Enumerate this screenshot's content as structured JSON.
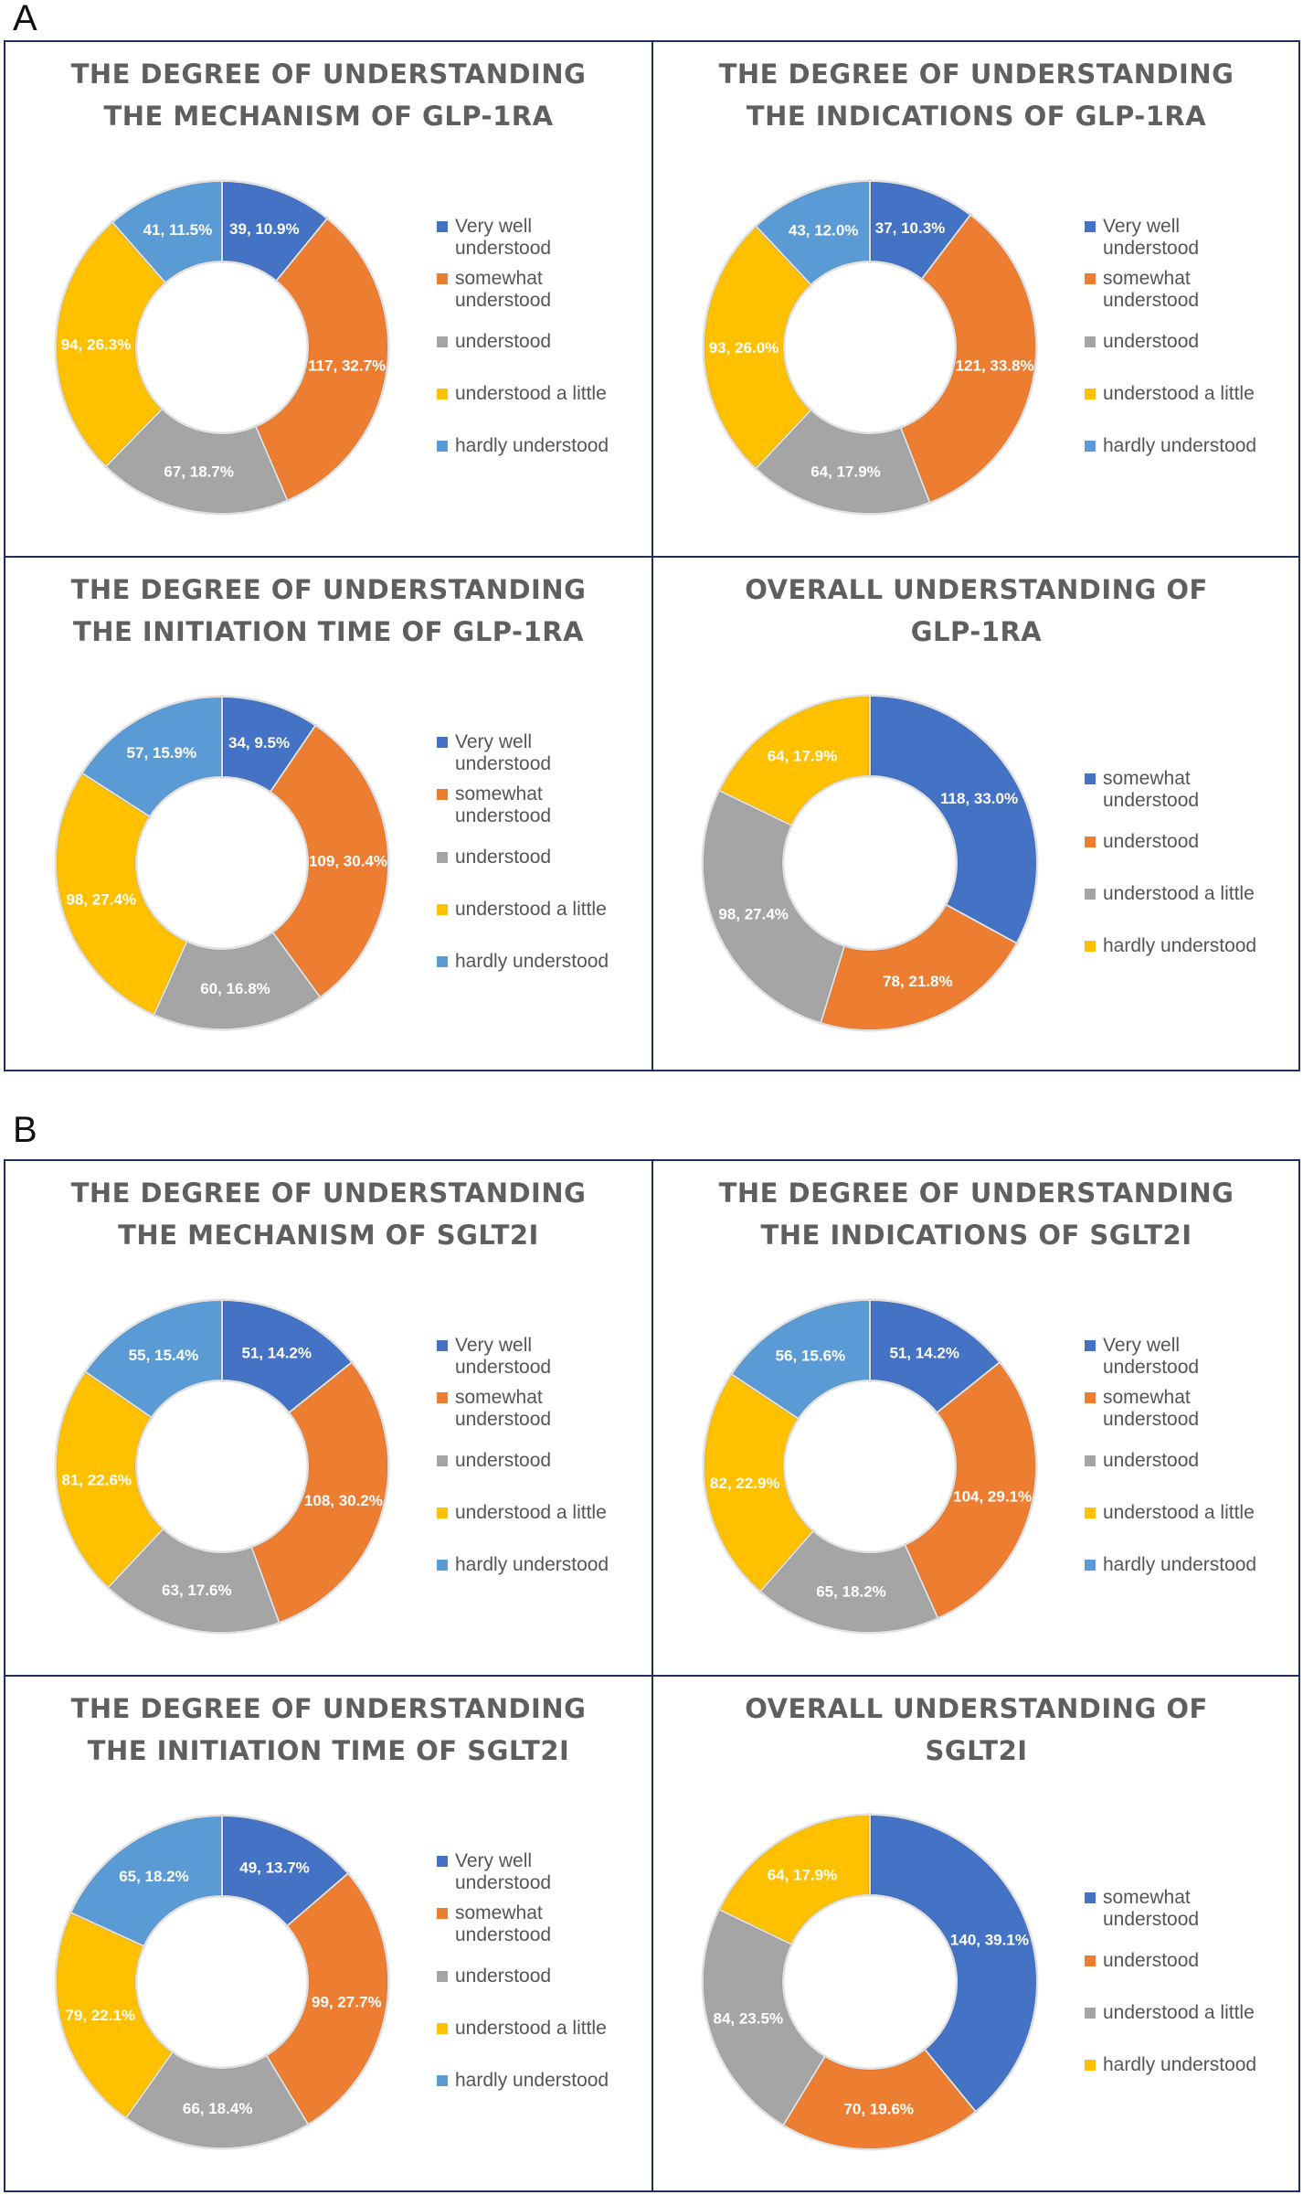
{
  "sections": [
    {
      "label": "A",
      "panels": [
        {
          "title_line1": "THE DEGREE OF UNDERSTANDING",
          "title_line2": "THE MECHANISM OF GLP-1RA",
          "chart_data": {
            "type": "pie",
            "categories": [
              "Very well understood",
              "somewhat understood",
              "understood",
              "understood a little",
              "hardly understood"
            ],
            "values": [
              39,
              117,
              67,
              94,
              41
            ],
            "labels": [
              "39, 10.9%",
              "117, 32.7%",
              "67, 18.7%",
              "94, 26.3%",
              "41, 11.5%"
            ],
            "colors": [
              "#4472c4",
              "#ed7d31",
              "#a5a5a5",
              "#ffc000",
              "#5b9bd5"
            ]
          },
          "legend": [
            "Very well\nunderstood",
            "somewhat\nunderstood",
            "understood",
            "understood a little",
            "hardly understood"
          ]
        },
        {
          "title_line1": "THE DEGREE OF UNDERSTANDING",
          "title_line2": "THE INDICATIONS OF GLP-1RA",
          "chart_data": {
            "type": "pie",
            "categories": [
              "Very well understood",
              "somewhat understood",
              "understood",
              "understood a little",
              "hardly understood"
            ],
            "values": [
              37,
              121,
              64,
              93,
              43
            ],
            "labels": [
              "37, 10.3%",
              "121, 33.8%",
              "64, 17.9%",
              "93, 26.0%",
              "43, 12.0%"
            ],
            "colors": [
              "#4472c4",
              "#ed7d31",
              "#a5a5a5",
              "#ffc000",
              "#5b9bd5"
            ]
          },
          "legend": [
            "Very well\nunderstood",
            "somewhat\nunderstood",
            "understood",
            "understood a little",
            "hardly understood"
          ]
        },
        {
          "title_line1": "THE DEGREE OF UNDERSTANDING",
          "title_line2": "THE INITIATION TIME OF GLP-1RA",
          "chart_data": {
            "type": "pie",
            "categories": [
              "Very well understood",
              "somewhat understood",
              "understood",
              "understood a little",
              "hardly understood"
            ],
            "values": [
              34,
              109,
              60,
              98,
              57
            ],
            "labels": [
              "34, 9.5%",
              "109, 30.4%",
              "60, 16.8%",
              "98, 27.4%",
              "57, 15.9%"
            ],
            "colors": [
              "#4472c4",
              "#ed7d31",
              "#a5a5a5",
              "#ffc000",
              "#5b9bd5"
            ]
          },
          "legend": [
            "Very well\nunderstood",
            "somewhat\nunderstood",
            "understood",
            "understood a little",
            "hardly understood"
          ]
        },
        {
          "title_line1": "OVERALL UNDERSTANDING OF",
          "title_line2": "GLP-1RA",
          "chart_data": {
            "type": "pie",
            "categories": [
              "somewhat understood",
              "understood",
              "understood a little",
              "hardly understood"
            ],
            "values": [
              118,
              78,
              98,
              64
            ],
            "labels": [
              "118, 33.0%",
              "78, 21.8%",
              "98, 27.4%",
              "64, 17.9%"
            ],
            "colors": [
              "#4472c4",
              "#ed7d31",
              "#a5a5a5",
              "#ffc000"
            ]
          },
          "legend": [
            "somewhat\nunderstood",
            "understood",
            "understood a little",
            "hardly understood"
          ]
        }
      ]
    },
    {
      "label": "B",
      "panels": [
        {
          "title_line1": "THE DEGREE OF UNDERSTANDING",
          "title_line2": "THE MECHANISM OF SGLT2I",
          "chart_data": {
            "type": "pie",
            "categories": [
              "Very well understood",
              "somewhat understood",
              "understood",
              "understood a little",
              "hardly understood"
            ],
            "values": [
              51,
              108,
              63,
              81,
              55
            ],
            "labels": [
              "51, 14.2%",
              "108, 30.2%",
              "63, 17.6%",
              "81, 22.6%",
              "55, 15.4%"
            ],
            "colors": [
              "#4472c4",
              "#ed7d31",
              "#a5a5a5",
              "#ffc000",
              "#5b9bd5"
            ]
          },
          "legend": [
            "Very well\nunderstood",
            "somewhat\nunderstood",
            "understood",
            "understood a little",
            "hardly understood"
          ]
        },
        {
          "title_line1": "THE DEGREE OF UNDERSTANDING",
          "title_line2": "THE INDICATIONS OF SGLT2I",
          "chart_data": {
            "type": "pie",
            "categories": [
              "Very well understood",
              "somewhat understood",
              "understood",
              "understood a little",
              "hardly understood"
            ],
            "values": [
              51,
              104,
              65,
              82,
              56
            ],
            "labels": [
              "51, 14.2%",
              "104, 29.1%",
              "65, 18.2%",
              "82, 22.9%",
              "56, 15.6%"
            ],
            "colors": [
              "#4472c4",
              "#ed7d31",
              "#a5a5a5",
              "#ffc000",
              "#5b9bd5"
            ]
          },
          "legend": [
            "Very well\nunderstood",
            "somewhat\nunderstood",
            "understood",
            "understood a little",
            "hardly understood"
          ]
        },
        {
          "title_line1": "THE DEGREE OF UNDERSTANDING",
          "title_line2": "THE INITIATION TIME OF SGLT2I",
          "chart_data": {
            "type": "pie",
            "categories": [
              "Very well understood",
              "somewhat understood",
              "understood",
              "understood a little",
              "hardly understood"
            ],
            "values": [
              49,
              99,
              66,
              79,
              65
            ],
            "labels": [
              "49, 13.7%",
              "99, 27.7%",
              "66, 18.4%",
              "79, 22.1%",
              "65, 18.2%"
            ],
            "colors": [
              "#4472c4",
              "#ed7d31",
              "#a5a5a5",
              "#ffc000",
              "#5b9bd5"
            ]
          },
          "legend": [
            "Very well\nunderstood",
            "somewhat\nunderstood",
            "understood",
            "understood a little",
            "hardly understood"
          ]
        },
        {
          "title_line1": "OVERALL UNDERSTANDING OF",
          "title_line2": "SGLT2I",
          "chart_data": {
            "type": "pie",
            "categories": [
              "somewhat understood",
              "understood",
              "understood a little",
              "hardly understood"
            ],
            "values": [
              140,
              70,
              84,
              64
            ],
            "labels": [
              "140, 39.1%",
              "70, 19.6%",
              "84, 23.5%",
              "64, 17.9%"
            ],
            "colors": [
              "#4472c4",
              "#ed7d31",
              "#a5a5a5",
              "#ffc000"
            ]
          },
          "legend": [
            "somewhat\nunderstood",
            "understood",
            "understood a little",
            "hardly understood"
          ]
        }
      ]
    }
  ]
}
